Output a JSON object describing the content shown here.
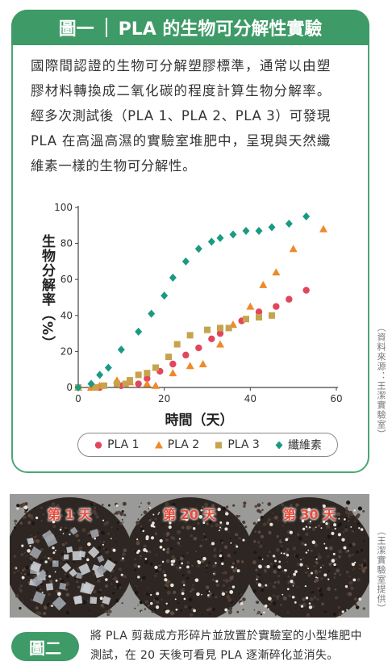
{
  "figure1": {
    "label": "圖一",
    "title": "PLA 的生物可分解性實驗",
    "description": "國際間認證的生物可分解塑膠標準，通常以由塑膠材料轉換成二氧化碳的程度計算生物分解率。經多次測試後（PLA 1、PLA 2、PLA 3）可發現 PLA 在高溫高濕的實驗室堆肥中，呈現與天然纖維素一樣的生物可分解性。",
    "source": "（資料來源：王潔實驗室）"
  },
  "chart_data": {
    "type": "scatter",
    "xlabel": "時間（天）",
    "ylabel": "生物分解率（%）",
    "xlim": [
      0,
      60
    ],
    "ylim": [
      0,
      100
    ],
    "xticks": [
      0,
      20,
      40,
      60
    ],
    "yticks": [
      0,
      20,
      40,
      60,
      80,
      100
    ],
    "grid": false,
    "legend_position": "bottom",
    "series": [
      {
        "name": "PLA 1",
        "marker": "circle",
        "color": "#e0475c",
        "points": [
          [
            0,
            0
          ],
          [
            5,
            0
          ],
          [
            10,
            1
          ],
          [
            14,
            2
          ],
          [
            16,
            5
          ],
          [
            19,
            9
          ],
          [
            22,
            13
          ],
          [
            25,
            18
          ],
          [
            28,
            22
          ],
          [
            31,
            27
          ],
          [
            33,
            30
          ],
          [
            38,
            37
          ],
          [
            42,
            42
          ],
          [
            46,
            45
          ],
          [
            49,
            49
          ],
          [
            53,
            54
          ]
        ]
      },
      {
        "name": "PLA 2",
        "marker": "triangle",
        "color": "#ee8a2b",
        "points": [
          [
            0,
            0
          ],
          [
            3,
            0
          ],
          [
            5,
            1
          ],
          [
            9,
            4
          ],
          [
            12,
            3
          ],
          [
            16,
            2
          ],
          [
            18,
            1
          ],
          [
            22,
            8
          ],
          [
            26,
            12
          ],
          [
            29,
            13
          ],
          [
            33,
            24
          ],
          [
            36,
            35
          ],
          [
            40,
            45
          ],
          [
            43,
            57
          ],
          [
            46,
            64
          ],
          [
            50,
            77
          ],
          [
            57,
            88
          ]
        ]
      },
      {
        "name": "PLA 3",
        "marker": "square",
        "color": "#c7a34e",
        "points": [
          [
            0,
            0
          ],
          [
            4,
            0
          ],
          [
            6,
            1
          ],
          [
            9,
            2
          ],
          [
            11,
            2
          ],
          [
            12,
            4
          ],
          [
            14,
            7
          ],
          [
            16,
            8
          ],
          [
            18,
            11
          ],
          [
            21,
            17
          ],
          [
            23,
            24
          ],
          [
            26,
            29
          ],
          [
            30,
            32
          ],
          [
            33,
            33
          ],
          [
            35,
            33
          ],
          [
            39,
            38
          ],
          [
            42,
            39
          ],
          [
            45,
            40
          ]
        ]
      },
      {
        "name": "纖維素",
        "marker": "diamond",
        "color": "#1a9a82",
        "points": [
          [
            0,
            0
          ],
          [
            3,
            2
          ],
          [
            5,
            7
          ],
          [
            7,
            11
          ],
          [
            10,
            21
          ],
          [
            14,
            31
          ],
          [
            17,
            41
          ],
          [
            20,
            51
          ],
          [
            22,
            61
          ],
          [
            25,
            70
          ],
          [
            28,
            77
          ],
          [
            31,
            81
          ],
          [
            33,
            83
          ],
          [
            36,
            85
          ],
          [
            39,
            87
          ],
          [
            42,
            87
          ],
          [
            45,
            89
          ],
          [
            49,
            91
          ],
          [
            53,
            95
          ]
        ]
      }
    ]
  },
  "figure2": {
    "label": "圖二",
    "caption": "將 PLA 剪裁成方形碎片並放置於實驗室的小型堆肥中測試，在 20 天後可看見 PLA 逐漸碎化並消失。",
    "source": "（王潔實驗室提供）",
    "photos": [
      {
        "label": "第 1 天"
      },
      {
        "label": "第 20 天"
      },
      {
        "label": "第 30 天"
      }
    ]
  }
}
